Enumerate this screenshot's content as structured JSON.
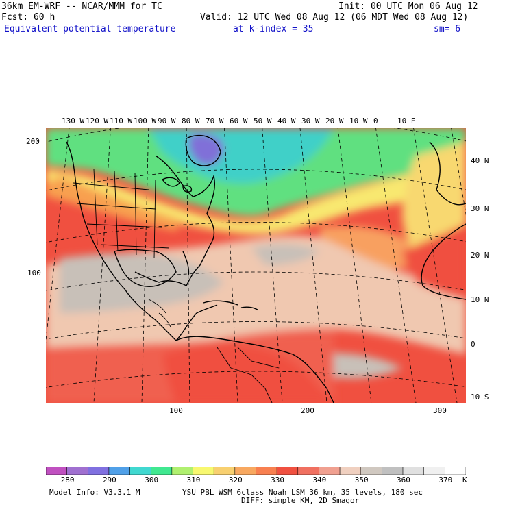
{
  "header": {
    "model_line": "36km EM-WRF -- NCAR/MMM for TC",
    "init_line": "Init: 00 UTC Mon 06 Aug 12",
    "fcst_line": "Fcst:   60 h",
    "valid_line": "Valid: 12 UTC Wed 08 Aug 12 (06 MDT Wed 08 Aug 12)",
    "field_name": "Equivalent potential temperature",
    "level_line": "at k-index =  35",
    "smoothing": "sm= 6"
  },
  "map": {
    "lon_labels": [
      "130 W",
      "120 W",
      "110 W",
      "100 W",
      "90 W",
      "80 W",
      "70 W",
      "60 W",
      "50 W",
      "40 W",
      "30 W",
      "20 W",
      "10 W",
      "0",
      "10 E"
    ],
    "lat_labels": [
      "40 N",
      "30 N",
      "20 N",
      "10 N",
      "0",
      "10 S"
    ],
    "grid_y_labels": [
      "200",
      "100"
    ],
    "grid_x_labels": [
      "100",
      "200",
      "300"
    ],
    "colors": {
      "cold": "#8060d8",
      "cool": "#40c8c0",
      "mild": "#60e080",
      "warm": "#f8f070",
      "orange": "#f8a050",
      "red": "#f05040",
      "pink": "#f0c8b0",
      "gray": "#c8c0b8",
      "coast": "#000000"
    }
  },
  "colorbar": {
    "values": [
      "280",
      "290",
      "300",
      "310",
      "320",
      "330",
      "340",
      "350",
      "360",
      "370"
    ],
    "unit": "K",
    "swatches": [
      "#c050c0",
      "#a070d0",
      "#8070e0",
      "#50a0e8",
      "#40d8d0",
      "#40e890",
      "#b0f070",
      "#f8f870",
      "#f8d070",
      "#f8a860",
      "#f88050",
      "#f05040",
      "#f07060",
      "#f0a090",
      "#f0d0c0",
      "#d0c8c0",
      "#c0c0c0",
      "#e0e0e0",
      "#f0f0f0",
      "#ffffff"
    ]
  },
  "footer": {
    "model_info": "Model Info: V3.3.1 M",
    "physics_line1": "YSU PBL  WSM 6class  Noah LSM  36 km,   35 levels,  180 sec",
    "physics_line2": "DIFF: simple KM, 2D Smagor"
  }
}
